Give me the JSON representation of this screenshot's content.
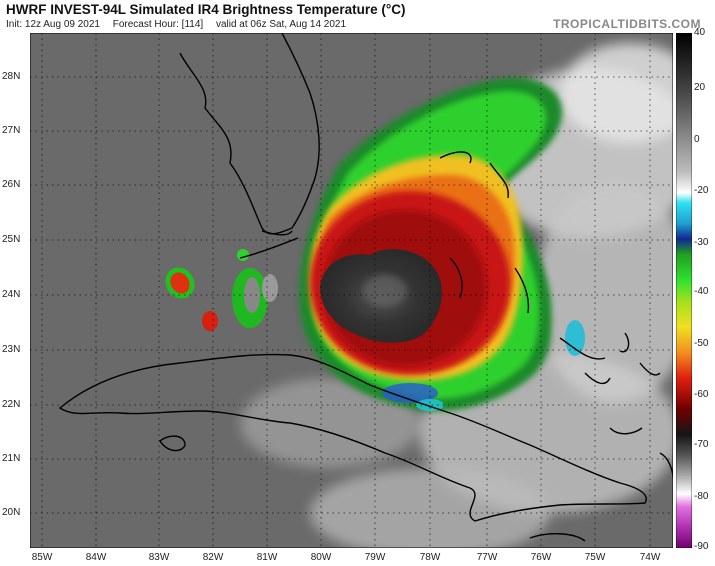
{
  "header": {
    "title": "HWRF INVEST-94L Simulated IR4 Brightness Temperature (°C)",
    "init": "Init: 12z Aug 09 2021",
    "forecast_hour": "Forecast Hour: [114]",
    "valid": "valid at 06z Sat, Aug 14 2021",
    "site": "TROPICALTIDBITS.COM"
  },
  "map": {
    "lat_labels": [
      "28N",
      "27N",
      "26N",
      "25N",
      "24N",
      "23N",
      "22N",
      "21N",
      "20N"
    ],
    "lon_labels": [
      "85W",
      "84W",
      "83W",
      "82W",
      "81W",
      "80W",
      "79W",
      "78W",
      "77W",
      "76W",
      "75W",
      "74W"
    ],
    "lat_range": [
      19.3,
      29.0
    ],
    "lon_range": [
      -85.5,
      -73.7
    ]
  },
  "colorbar": {
    "labels": [
      "40",
      "20",
      "0",
      "-20",
      "-30",
      "-40",
      "-50",
      "-60",
      "-70",
      "-80",
      "-90"
    ],
    "range": [
      40,
      -90
    ],
    "colors": {
      "warm_gray": "#6a6a6a",
      "cold_white": "#f0f0f0",
      "cyan": "#22c8e0",
      "blue": "#1030a0",
      "green": "#20c020",
      "yellow": "#f0e020",
      "orange": "#f08020",
      "red": "#d01010",
      "dark_red": "#700000",
      "black": "#111111",
      "magenta": "#d040c0"
    }
  }
}
